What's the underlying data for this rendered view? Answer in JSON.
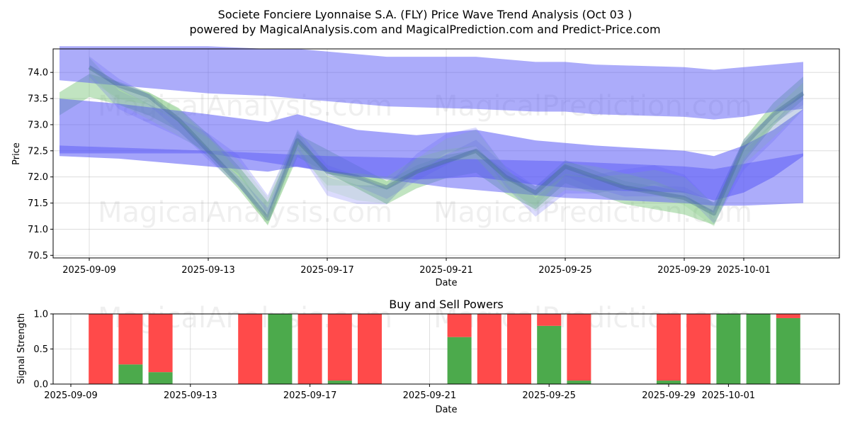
{
  "header": {
    "title_line1": "Societe Fonciere Lyonnaise S.A. (FLY) Price Wave Trend Analysis (Oct 03 )",
    "title_line2": "powered by MagicalAnalysis.com and MagicalPrediction.com and Predict-Price.com"
  },
  "watermarks": [
    "MagicalAnalysis.com",
    "MagicalPrediction.com"
  ],
  "colors": {
    "band_blue": "#5a5af5",
    "band_green": "#76c476",
    "buy_green": "#4caa4c",
    "sell_red": "#ff4a4a"
  },
  "chart_data": [
    {
      "type": "line",
      "title": "",
      "xlabel": "Date",
      "ylabel": "Price",
      "ylim": [
        70.45,
        74.45
      ],
      "yticks": [
        70.5,
        71.0,
        71.5,
        72.0,
        72.5,
        73.0,
        73.5,
        74.0
      ],
      "ytick_labels": [
        "70.5",
        "71.0",
        "71.5",
        "72.0",
        "72.5",
        "73.0",
        "73.5",
        "74.0"
      ],
      "xticks": [
        "2025-09-09",
        "2025-09-13",
        "2025-09-17",
        "2025-09-21",
        "2025-09-25",
        "2025-09-29",
        "2025-10-01"
      ],
      "grid": true,
      "price_path": {
        "dates": [
          "2025-09-09",
          "2025-09-10",
          "2025-09-11",
          "2025-09-12",
          "2025-09-13",
          "2025-09-14",
          "2025-09-15",
          "2025-09-16",
          "2025-09-17",
          "2025-09-18",
          "2025-09-19",
          "2025-09-20",
          "2025-09-21",
          "2025-09-22",
          "2025-09-23",
          "2025-09-24",
          "2025-09-25",
          "2025-09-26",
          "2025-09-27",
          "2025-09-28",
          "2025-09-29",
          "2025-09-30",
          "2025-10-01",
          "2025-10-02",
          "2025-10-03"
        ],
        "values": [
          74.1,
          73.75,
          73.55,
          73.1,
          72.5,
          71.9,
          71.2,
          72.7,
          72.1,
          72.0,
          71.8,
          72.1,
          72.3,
          72.5,
          72.0,
          71.7,
          72.2,
          72.0,
          71.8,
          71.7,
          71.6,
          71.3,
          72.6,
          73.2,
          73.6
        ]
      },
      "green_band": {
        "dates": [
          "2025-09-08",
          "2025-09-09",
          "2025-09-10",
          "2025-09-11",
          "2025-09-12",
          "2025-09-13",
          "2025-09-14",
          "2025-09-15",
          "2025-09-16",
          "2025-09-17",
          "2025-09-18",
          "2025-09-19",
          "2025-09-20",
          "2025-09-21",
          "2025-09-22",
          "2025-09-23",
          "2025-09-24",
          "2025-09-25",
          "2025-09-26",
          "2025-09-27",
          "2025-09-28",
          "2025-09-29",
          "2025-09-30",
          "2025-10-01",
          "2025-10-02",
          "2025-10-03"
        ],
        "center": [
          73.4,
          73.75,
          73.6,
          73.4,
          73.1,
          72.6,
          72.0,
          71.3,
          72.6,
          72.3,
          72.0,
          71.7,
          72.0,
          72.2,
          72.3,
          71.9,
          71.6,
          72.1,
          71.9,
          71.7,
          71.6,
          71.5,
          71.3,
          72.5,
          73.2,
          73.7
        ],
        "half_width": 0.22
      },
      "upper_blue_band": {
        "dates": [
          "2025-09-08",
          "2025-09-13",
          "2025-09-15",
          "2025-09-16",
          "2025-09-19",
          "2025-09-22",
          "2025-09-24",
          "2025-09-25",
          "2025-09-26",
          "2025-09-29",
          "2025-09-30",
          "2025-10-01",
          "2025-10-02",
          "2025-10-03"
        ],
        "upper": [
          74.5,
          74.5,
          74.45,
          74.45,
          74.3,
          74.3,
          74.2,
          74.2,
          74.15,
          74.1,
          74.05,
          74.1,
          74.15,
          74.2
        ],
        "lower": [
          73.85,
          73.6,
          73.55,
          73.5,
          73.35,
          73.3,
          73.25,
          73.25,
          73.2,
          73.15,
          73.1,
          73.15,
          73.25,
          73.3
        ]
      },
      "middle_blue_band": {
        "dates": [
          "2025-09-08",
          "2025-09-10",
          "2025-09-13",
          "2025-09-15",
          "2025-09-16",
          "2025-09-18",
          "2025-09-20",
          "2025-09-22",
          "2025-09-24",
          "2025-09-26",
          "2025-09-29",
          "2025-09-30",
          "2025-10-01",
          "2025-10-02",
          "2025-10-03"
        ],
        "upper": [
          73.5,
          73.4,
          73.2,
          73.05,
          73.2,
          72.9,
          72.8,
          72.9,
          72.7,
          72.6,
          72.5,
          72.4,
          72.6,
          72.9,
          73.3
        ],
        "lower": [
          72.4,
          72.35,
          72.2,
          72.1,
          72.2,
          72.0,
          71.95,
          72.0,
          71.85,
          71.75,
          71.7,
          71.55,
          71.7,
          72.0,
          72.4
        ]
      },
      "lower_blue_band": {
        "dates": [
          "2025-09-08",
          "2025-09-13",
          "2025-09-17",
          "2025-09-21",
          "2025-09-25",
          "2025-09-29",
          "2025-09-30",
          "2025-10-01",
          "2025-10-03"
        ],
        "upper": [
          72.6,
          72.5,
          72.4,
          72.35,
          72.3,
          72.2,
          72.15,
          72.25,
          72.45
        ],
        "lower": [
          72.45,
          72.45,
          72.1,
          71.8,
          71.6,
          71.5,
          71.45,
          71.45,
          71.5
        ]
      }
    },
    {
      "type": "bar",
      "title": "Buy and Sell Powers",
      "xlabel": "Date",
      "ylabel": "Signal Strength",
      "ylim": [
        0,
        1.0
      ],
      "yticks": [
        0.0,
        0.5,
        1.0
      ],
      "ytick_labels": [
        "0.0",
        "0.5",
        "1.0"
      ],
      "xticks": [
        "2025-09-09",
        "2025-09-13",
        "2025-09-17",
        "2025-09-21",
        "2025-09-25",
        "2025-09-29",
        "2025-10-01"
      ],
      "grid": true,
      "categories": [
        "2025-09-10",
        "2025-09-11",
        "2025-09-12",
        "2025-09-15",
        "2025-09-16",
        "2025-09-17",
        "2025-09-18",
        "2025-09-19",
        "2025-09-22",
        "2025-09-23",
        "2025-09-24",
        "2025-09-25",
        "2025-09-26",
        "2025-09-29",
        "2025-09-30",
        "2025-10-01",
        "2025-10-02",
        "2025-10-03"
      ],
      "series": [
        {
          "values": [
            0.0,
            0.28,
            0.17,
            0.0,
            1.0,
            0.0,
            0.05,
            0.0,
            0.67,
            0.0,
            0.0,
            0.83,
            0.05,
            0.05,
            0.0,
            1.0,
            1.0,
            0.94
          ]
        },
        {
          "values": [
            1.0,
            0.72,
            0.83,
            1.0,
            0.0,
            1.0,
            0.95,
            1.0,
            0.33,
            1.0,
            1.0,
            0.17,
            0.95,
            0.95,
            1.0,
            0.0,
            0.0,
            0.06
          ]
        }
      ]
    }
  ]
}
